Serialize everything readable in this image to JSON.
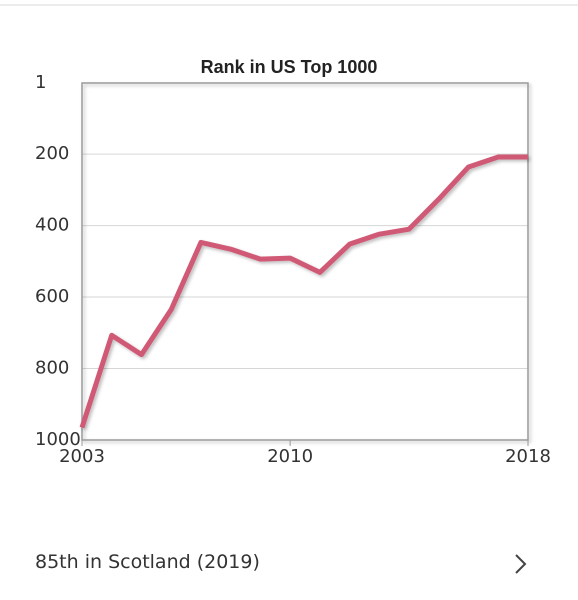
{
  "chart_data": {
    "type": "line",
    "title": "Rank in US Top 1000",
    "x": [
      2003,
      2004,
      2005,
      2006,
      2007,
      2008,
      2009,
      2010,
      2011,
      2012,
      2013,
      2014,
      2015,
      2016,
      2017,
      2018
    ],
    "series": [
      {
        "color": "#d05a76",
        "values": [
          965,
          707,
          761,
          635,
          447,
          466,
          494,
          491,
          531,
          452,
          424,
          410,
          326,
          236,
          208,
          208
        ]
      }
    ],
    "xlim": [
      2003,
      2018
    ],
    "xticks": [
      2003,
      2010,
      2018
    ],
    "ylim": [
      1,
      1000
    ],
    "yticks": [
      1,
      200,
      400,
      600,
      800,
      1000
    ],
    "y_reversed": true,
    "grid": true
  },
  "footer": {
    "label": "85th in Scotland (2019)"
  }
}
